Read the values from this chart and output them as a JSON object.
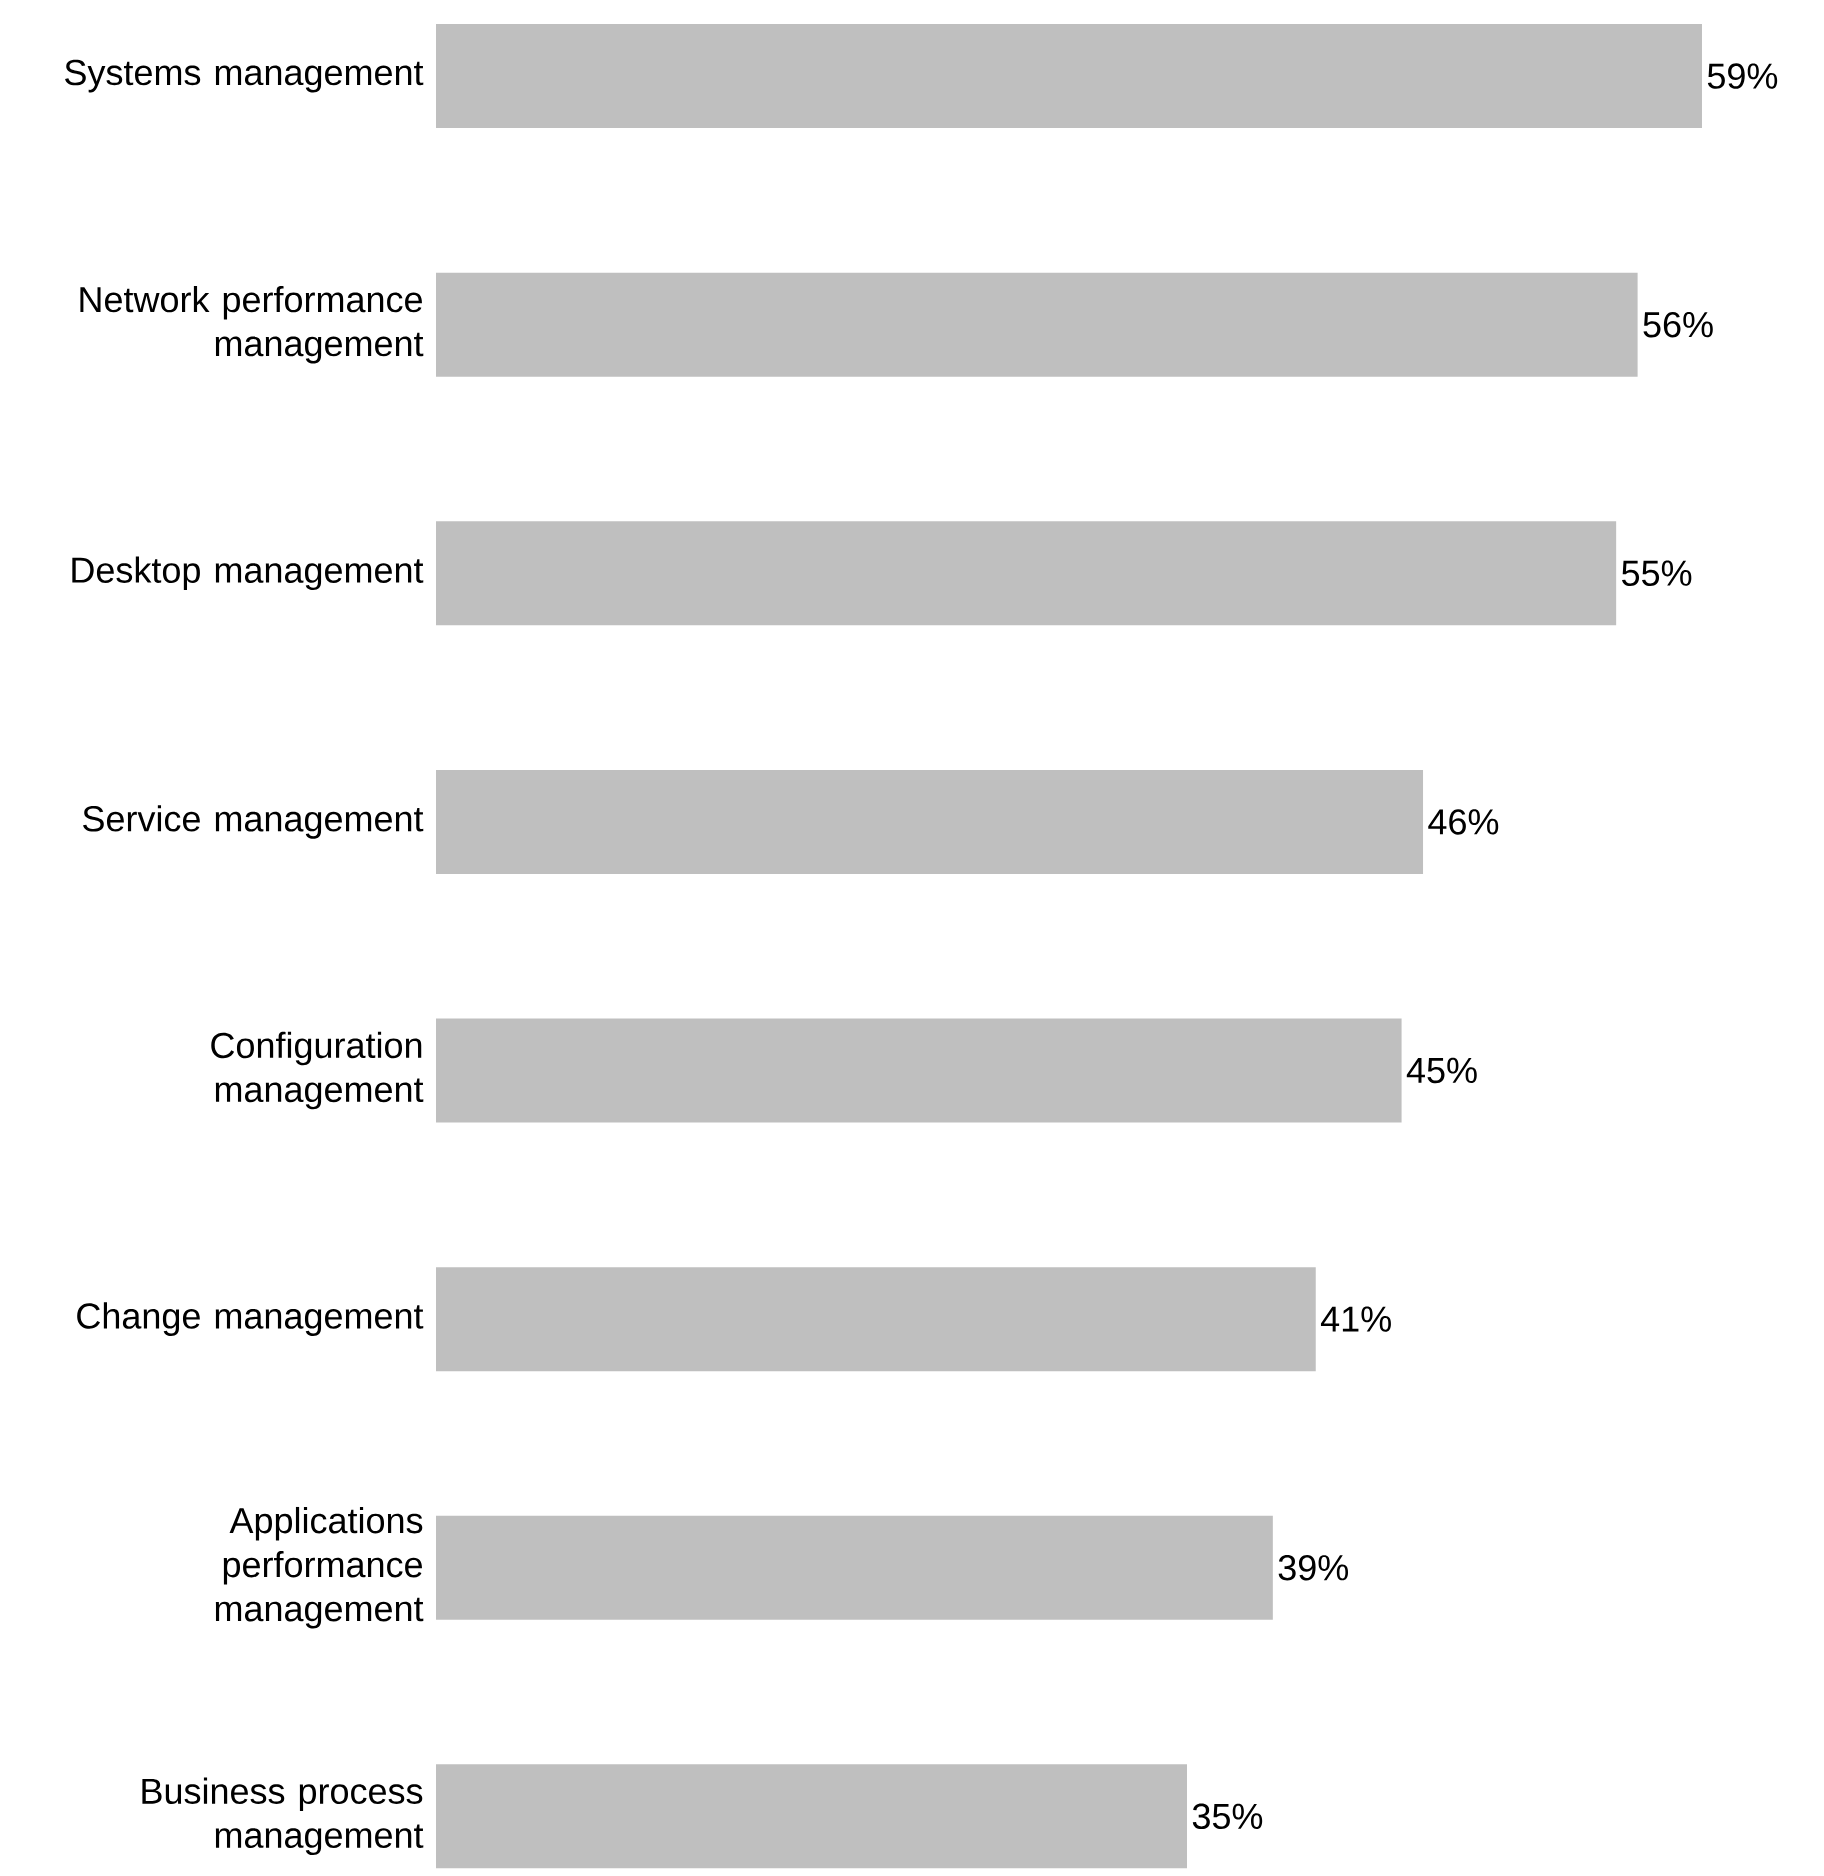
{
  "chart_data": {
    "type": "bar",
    "orientation": "horizontal",
    "categories": [
      "Systems management",
      "Network performance management",
      "Desktop management",
      "Service management",
      "Configuration management",
      "Change management",
      "Applications performance management",
      "Business process management"
    ],
    "values": [
      59,
      56,
      55,
      46,
      45,
      41,
      39,
      35
    ],
    "value_labels": [
      "59%",
      "56%",
      "55%",
      "46%",
      "45%",
      "41%",
      "39%",
      "35%"
    ],
    "color": "#bfbfbf"
  }
}
